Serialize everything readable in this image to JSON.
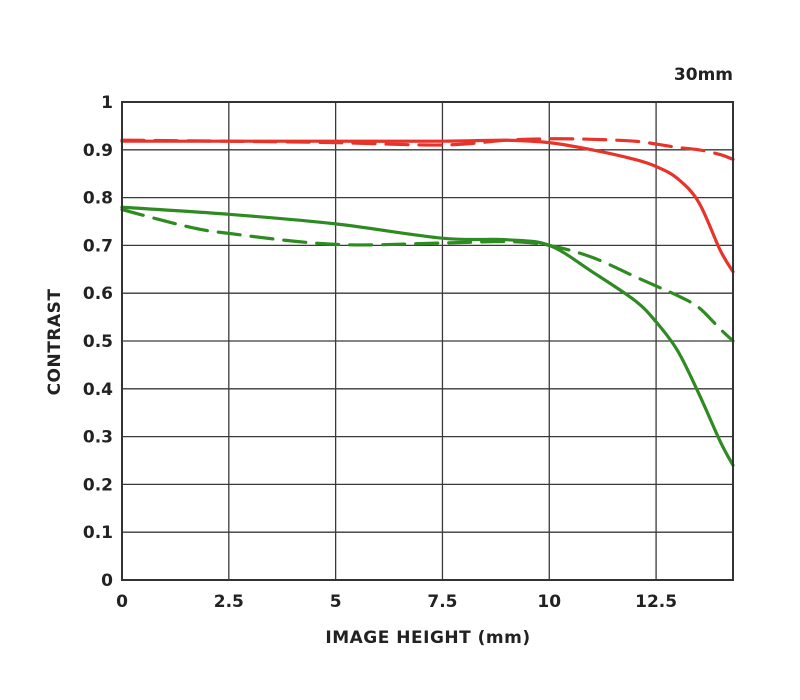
{
  "chart_data": {
    "type": "line",
    "title": "",
    "corner_label": "30mm",
    "xlabel": "IMAGE HEIGHT (mm)",
    "ylabel": "CONTRAST",
    "xlim": [
      0,
      14.3
    ],
    "ylim": [
      0,
      1
    ],
    "x_ticks": [
      0,
      2.5,
      5,
      7.5,
      10,
      12.5
    ],
    "x_tick_labels": [
      "0",
      "2.5",
      "5",
      "7.5",
      "10",
      "12.5"
    ],
    "y_ticks": [
      0,
      0.1,
      0.2,
      0.3,
      0.4,
      0.5,
      0.6,
      0.7,
      0.8,
      0.9,
      1
    ],
    "y_tick_labels": [
      "0",
      "0.1",
      "0.2",
      "0.3",
      "0.4",
      "0.5",
      "0.6",
      "0.7",
      "0.8",
      "0.9",
      "1"
    ],
    "grid": true,
    "legend": "none",
    "series": [
      {
        "color": "#e8332a",
        "dash": false,
        "x": [
          0,
          2.5,
          5,
          7.5,
          9,
          10,
          11,
          12,
          12.5,
          13,
          13.5,
          14,
          14.3
        ],
        "y": [
          0.918,
          0.918,
          0.918,
          0.918,
          0.92,
          0.915,
          0.9,
          0.88,
          0.865,
          0.84,
          0.79,
          0.69,
          0.645
        ]
      },
      {
        "color": "#e8332a",
        "dash": true,
        "x": [
          0,
          2.5,
          5,
          7.5,
          9,
          10,
          11,
          12,
          12.5,
          13,
          13.5,
          14,
          14.3
        ],
        "y": [
          0.92,
          0.918,
          0.915,
          0.91,
          0.92,
          0.923,
          0.922,
          0.918,
          0.912,
          0.905,
          0.9,
          0.89,
          0.88
        ]
      },
      {
        "color": "#2e8b22",
        "dash": false,
        "x": [
          0,
          2.5,
          5,
          7.5,
          9,
          10,
          11,
          12,
          12.5,
          13,
          13.5,
          14,
          14.3
        ],
        "y": [
          0.78,
          0.765,
          0.745,
          0.715,
          0.712,
          0.7,
          0.645,
          0.585,
          0.54,
          0.48,
          0.39,
          0.29,
          0.24
        ]
      },
      {
        "color": "#2e8b22",
        "dash": true,
        "x": [
          0,
          1.5,
          2.5,
          5,
          7.5,
          9,
          10,
          11,
          12,
          12.5,
          13,
          13.5,
          14,
          14.3
        ],
        "y": [
          0.775,
          0.74,
          0.725,
          0.702,
          0.705,
          0.708,
          0.7,
          0.675,
          0.635,
          0.615,
          0.595,
          0.57,
          0.525,
          0.5
        ]
      }
    ]
  }
}
